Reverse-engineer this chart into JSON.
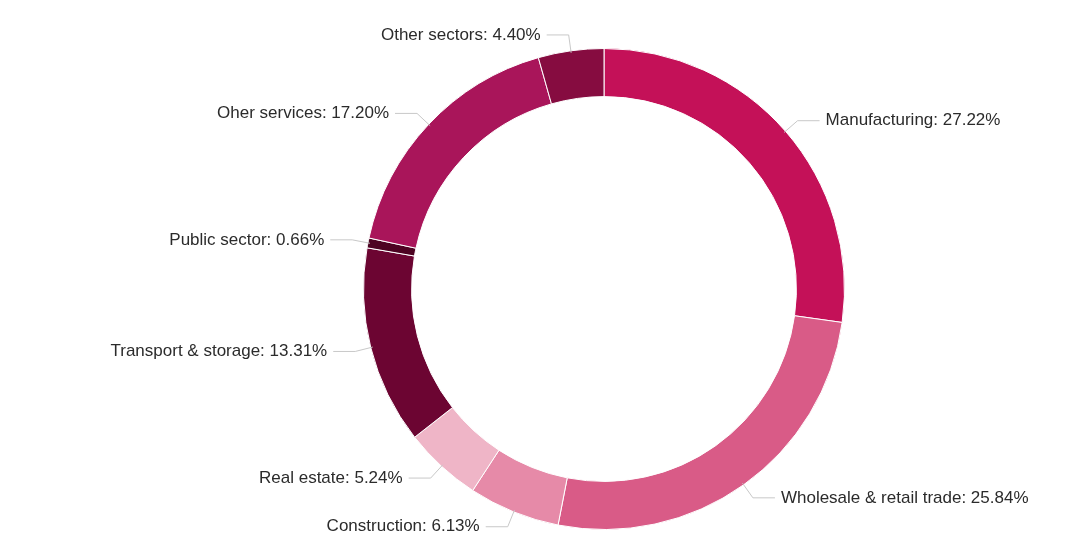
{
  "chart_data": {
    "type": "donut",
    "categories": [
      "Manufacturing",
      "Wholesale & retail trade",
      "Construction",
      "Real estate",
      "Transport & storage",
      "Public sector",
      "Oher services",
      "Other sectors"
    ],
    "values": [
      27.22,
      25.84,
      6.13,
      5.24,
      13.31,
      0.66,
      17.2,
      4.4
    ],
    "value_labels": [
      "27.22%",
      "25.84%",
      "6.13%",
      "5.24%",
      "13.31%",
      "0.66%",
      "17.20%",
      "4.40%"
    ],
    "colors": [
      "#c41158",
      "#d95b87",
      "#e68aa8",
      "#efb5c7",
      "#6c0532",
      "#4d0322",
      "#a9155a",
      "#860c40"
    ],
    "legend": false
  }
}
